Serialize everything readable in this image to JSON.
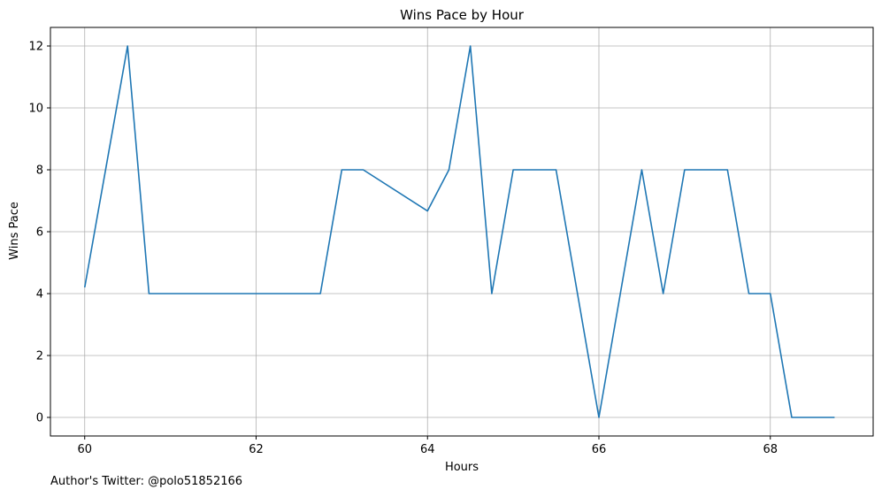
{
  "chart_data": {
    "type": "line",
    "title": "Wins Pace by Hour",
    "xlabel": "Hours",
    "ylabel": "Wins Pace",
    "xlim": [
      59.6,
      69.2
    ],
    "ylim": [
      -0.6,
      12.6
    ],
    "xticks": [
      60,
      62,
      64,
      66,
      68
    ],
    "yticks": [
      0,
      2,
      4,
      6,
      8,
      10,
      12
    ],
    "grid": true,
    "line_color": "#1f77b4",
    "series": [
      {
        "x": [
          60.0,
          60.5,
          60.75,
          61.0,
          61.5,
          62.0,
          62.5,
          62.75,
          63.0,
          63.25,
          64.0,
          64.25,
          64.5,
          64.75,
          65.0,
          65.25,
          65.5,
          66.0,
          66.5,
          66.75,
          67.0,
          67.25,
          67.5,
          67.75,
          68.0,
          68.25,
          68.5,
          68.75
        ],
        "y": [
          4.2,
          12,
          4,
          4,
          4,
          4,
          4,
          4,
          8,
          8,
          6.67,
          8,
          12,
          4,
          8,
          8,
          8,
          0,
          8,
          4,
          8,
          8,
          8,
          4,
          4,
          0,
          0,
          0
        ]
      }
    ]
  },
  "footer": {
    "text": "Author's Twitter: @polo51852166"
  }
}
